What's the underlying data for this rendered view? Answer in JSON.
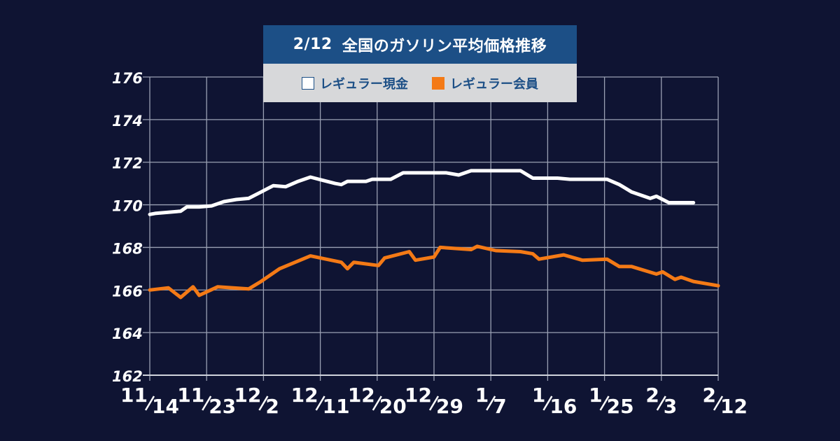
{
  "title": {
    "date": "2/12",
    "text": "全国のガソリン平均価格推移"
  },
  "colors": {
    "background": "#0f1433",
    "title_bg": "#1c4f86",
    "legend_bg": "#d7d8da",
    "grid": "#9aa0b3",
    "cash": "#ffffff",
    "member": "#f47a16"
  },
  "chart_data": {
    "type": "line",
    "ylim": [
      162,
      176
    ],
    "yticks": [
      162,
      164,
      166,
      168,
      170,
      172,
      174,
      176
    ],
    "xticks": [
      {
        "num": "11",
        "den": "14"
      },
      {
        "num": "11",
        "den": "23"
      },
      {
        "num": "12",
        "den": "2"
      },
      {
        "num": "12",
        "den": "11"
      },
      {
        "num": "12",
        "den": "20"
      },
      {
        "num": "12",
        "den": "29"
      },
      {
        "num": "1",
        "den": "7"
      },
      {
        "num": "1",
        "den": "16"
      },
      {
        "num": "1",
        "den": "25"
      },
      {
        "num": "2",
        "den": "3"
      },
      {
        "num": "2",
        "den": "12"
      }
    ],
    "legend": [
      {
        "name": "レギュラー現金",
        "color": "#ffffff"
      },
      {
        "name": "レギュラー会員",
        "color": "#f47a16"
      }
    ],
    "series": [
      {
        "name": "レギュラー現金",
        "color": "#ffffff",
        "points": [
          [
            0,
            169.55
          ],
          [
            1,
            169.6
          ],
          [
            3,
            169.65
          ],
          [
            5,
            169.7
          ],
          [
            6,
            169.9
          ],
          [
            8,
            169.9
          ],
          [
            10,
            169.95
          ],
          [
            12,
            170.15
          ],
          [
            14,
            170.25
          ],
          [
            16,
            170.3
          ],
          [
            18,
            170.6
          ],
          [
            20,
            170.9
          ],
          [
            22,
            170.85
          ],
          [
            24,
            171.1
          ],
          [
            26,
            171.3
          ],
          [
            28,
            171.15
          ],
          [
            30,
            171.0
          ],
          [
            31,
            170.95
          ],
          [
            32,
            171.1
          ],
          [
            35,
            171.1
          ],
          [
            36,
            171.2
          ],
          [
            39,
            171.2
          ],
          [
            41,
            171.5
          ],
          [
            46,
            171.5
          ],
          [
            48,
            171.5
          ],
          [
            50,
            171.4
          ],
          [
            52,
            171.6
          ],
          [
            58,
            171.6
          ],
          [
            60,
            171.6
          ],
          [
            62,
            171.25
          ],
          [
            66,
            171.25
          ],
          [
            68,
            171.2
          ],
          [
            72,
            171.2
          ],
          [
            74,
            171.2
          ],
          [
            76,
            170.95
          ],
          [
            78,
            170.6
          ],
          [
            81,
            170.3
          ],
          [
            82,
            170.4
          ],
          [
            84,
            170.1
          ],
          [
            88,
            170.1
          ]
        ]
      },
      {
        "name": "レギュラー会員",
        "color": "#f47a16",
        "points": [
          [
            0,
            166.0
          ],
          [
            3,
            166.1
          ],
          [
            5,
            165.65
          ],
          [
            7,
            166.15
          ],
          [
            8,
            165.75
          ],
          [
            11,
            166.15
          ],
          [
            16,
            166.05
          ],
          [
            18,
            166.4
          ],
          [
            21,
            167.0
          ],
          [
            26,
            167.6
          ],
          [
            31,
            167.3
          ],
          [
            32,
            167.0
          ],
          [
            33,
            167.3
          ],
          [
            37,
            167.15
          ],
          [
            38,
            167.5
          ],
          [
            42,
            167.8
          ],
          [
            43,
            167.4
          ],
          [
            46,
            167.55
          ],
          [
            47,
            168.0
          ],
          [
            52,
            167.9
          ],
          [
            53,
            168.05
          ],
          [
            56,
            167.85
          ],
          [
            60,
            167.8
          ],
          [
            62,
            167.7
          ],
          [
            63,
            167.45
          ],
          [
            67,
            167.65
          ],
          [
            70,
            167.4
          ],
          [
            74,
            167.45
          ],
          [
            76,
            167.1
          ],
          [
            78,
            167.1
          ],
          [
            82,
            166.75
          ],
          [
            83,
            166.85
          ],
          [
            85,
            166.5
          ],
          [
            86,
            166.6
          ],
          [
            88,
            166.4
          ],
          [
            92,
            166.2
          ]
        ]
      }
    ],
    "x_domain": [
      0,
      92
    ],
    "grid": true
  }
}
